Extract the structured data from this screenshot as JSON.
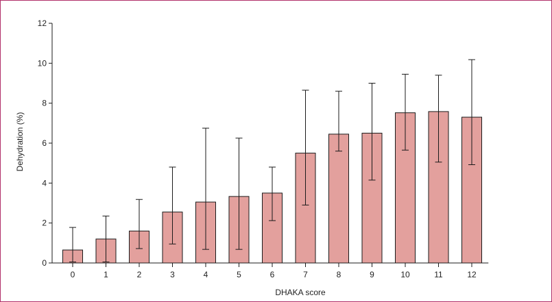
{
  "chart_data": {
    "type": "bar",
    "xlabel": "DHAKA score",
    "ylabel": "Dehydration (%)",
    "ylim": [
      0,
      12
    ],
    "yticks": [
      0,
      2,
      4,
      6,
      8,
      10,
      12
    ],
    "categories": [
      "0",
      "1",
      "2",
      "3",
      "4",
      "5",
      "6",
      "7",
      "8",
      "9",
      "10",
      "11",
      "12"
    ],
    "values": [
      0.65,
      1.2,
      1.6,
      2.55,
      3.05,
      3.33,
      3.5,
      5.5,
      6.45,
      6.5,
      7.52,
      7.58,
      7.3
    ],
    "error_upper": [
      1.78,
      2.35,
      3.18,
      4.8,
      6.75,
      6.25,
      4.8,
      8.65,
      8.6,
      9.0,
      9.45,
      9.4,
      10.18
    ],
    "error_lower": [
      0.05,
      0.05,
      0.72,
      0.95,
      0.68,
      0.68,
      2.12,
      2.9,
      5.6,
      4.15,
      5.65,
      5.05,
      4.92
    ],
    "bar_color": "#e3a09d",
    "bar_stroke": "#1a1a1a",
    "grid": false,
    "legend": "none"
  }
}
